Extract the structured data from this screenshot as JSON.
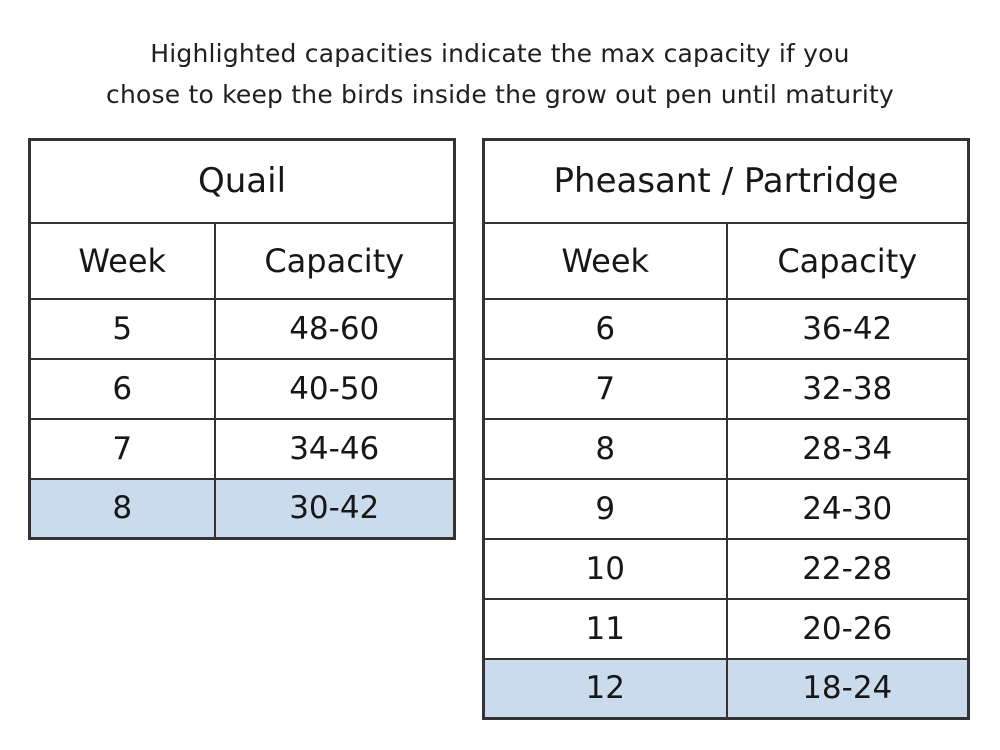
{
  "note": {
    "line1": "Highlighted capacities indicate the max capacity if you",
    "line2": "chose to keep the birds inside the grow out pen until maturity"
  },
  "tables": [
    {
      "id": "quail",
      "title": "Quail",
      "columns": [
        "Week",
        "Capacity"
      ],
      "rows": [
        {
          "week": "5",
          "capacity": "48-60",
          "highlighted": false
        },
        {
          "week": "6",
          "capacity": "40-50",
          "highlighted": false
        },
        {
          "week": "7",
          "capacity": "34-46",
          "highlighted": false
        },
        {
          "week": "8",
          "capacity": "30-42",
          "highlighted": true
        }
      ]
    },
    {
      "id": "pheasant-partridge",
      "title": "Pheasant / Partridge",
      "columns": [
        "Week",
        "Capacity"
      ],
      "rows": [
        {
          "week": "6",
          "capacity": "36-42",
          "highlighted": false
        },
        {
          "week": "7",
          "capacity": "32-38",
          "highlighted": false
        },
        {
          "week": "8",
          "capacity": "28-34",
          "highlighted": false
        },
        {
          "week": "9",
          "capacity": "24-30",
          "highlighted": false
        },
        {
          "week": "10",
          "capacity": "22-28",
          "highlighted": false
        },
        {
          "week": "11",
          "capacity": "20-26",
          "highlighted": false
        },
        {
          "week": "12",
          "capacity": "18-24",
          "highlighted": true
        }
      ]
    }
  ],
  "colors": {
    "highlight": "#c9dbec",
    "border": "#333333",
    "text": "#171717",
    "background": "#ffffff"
  }
}
